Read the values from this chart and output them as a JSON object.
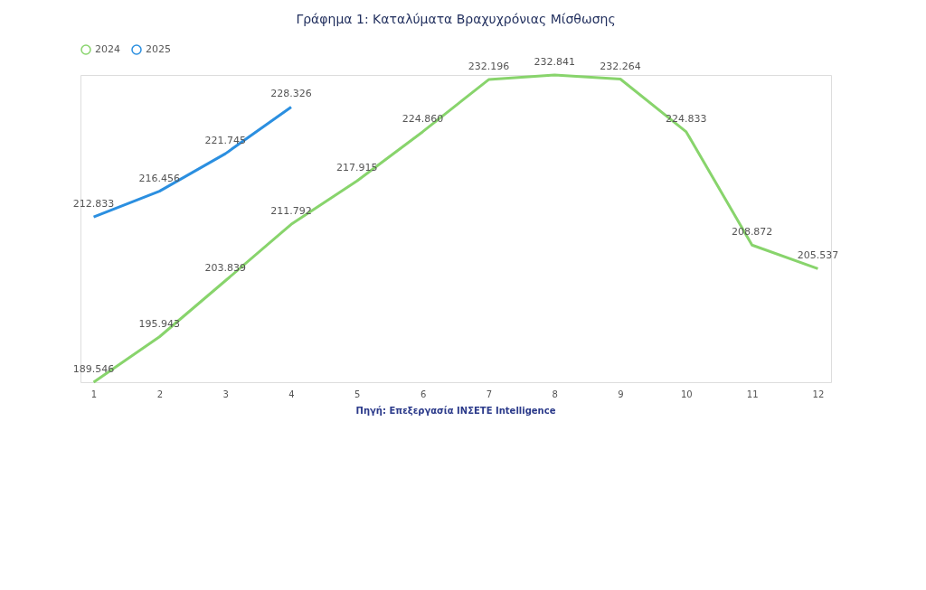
{
  "chart_data": {
    "type": "line",
    "title": "Γράφημα 1: Καταλύματα Βραχυχρόνιας Μίσθωσης",
    "categories": [
      "1",
      "2",
      "3",
      "4",
      "5",
      "6",
      "7",
      "8",
      "9",
      "10",
      "11",
      "12"
    ],
    "series": [
      {
        "name": "2024",
        "color": "#88d46c",
        "values": [
          189.546,
          195.943,
          203.839,
          211.792,
          217.915,
          224.86,
          232.196,
          232.841,
          232.264,
          224.833,
          208.872,
          205.537
        ],
        "value_labels": [
          "189.546",
          "195.943",
          "203.839",
          "211.792",
          "217.915",
          "224.860",
          "232.196",
          "232.841",
          "232.264",
          "224.833",
          "208.872",
          "205.537"
        ]
      },
      {
        "name": "2025",
        "color": "#2b8fe0",
        "values": [
          212.833,
          216.456,
          221.745,
          228.326,
          null,
          null,
          null,
          null,
          null,
          null,
          null,
          null
        ],
        "value_labels": [
          "212.833",
          "216.456",
          "221.745",
          "228.326",
          null,
          null,
          null,
          null,
          null,
          null,
          null,
          null
        ]
      }
    ],
    "tick_labels": "x",
    "legend": "top",
    "line_style": "solid",
    "annotations": [
      "Πηγή: Επεξεργασία INΣΕΤΕ Intelligence"
    ]
  }
}
